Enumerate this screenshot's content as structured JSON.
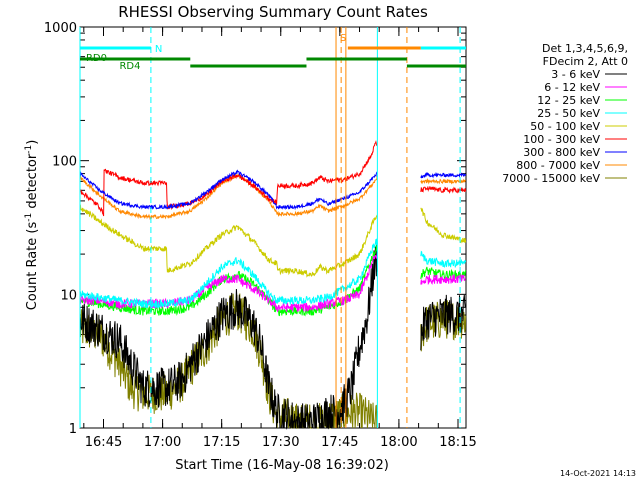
{
  "chart_data": {
    "type": "line",
    "title": "RHESSI Observing Summary Count Rates",
    "xlabel": "Start Time (16-May-08 16:39:02)",
    "ylabel": "Count Rate (s^-1 detector^-1)",
    "y_scale": "log",
    "ylim": [
      1,
      1000
    ],
    "x_minutes_range": [
      0,
      98
    ],
    "x_ticks": [
      "16:45",
      "17:00",
      "17:15",
      "17:30",
      "17:45",
      "18:00",
      "18:15"
    ],
    "y_ticks": [
      "1",
      "10",
      "100",
      "1000"
    ],
    "legend_header": [
      "Det 1,3,4,5,6,9,",
      "FDecim 2, Att 0"
    ],
    "legend_position": "right",
    "footer": "14-Oct-2021 14:13",
    "series": [
      {
        "name": "3 - 6 keV",
        "color": "#000000",
        "x": [
          0,
          5,
          10,
          13,
          16,
          22,
          26,
          28,
          32,
          36,
          40,
          44,
          46,
          48,
          50,
          53,
          55,
          57,
          59,
          61,
          63,
          65,
          67,
          69,
          71,
          73,
          74.5,
          75.5,
          86.5,
          88,
          92,
          98
        ],
        "y": [
          6.5,
          5.5,
          4.5,
          3,
          2,
          2,
          2.3,
          3,
          4.5,
          7,
          8,
          6,
          4,
          2,
          1.3,
          1.2,
          1.1,
          1.1,
          1.1,
          1.2,
          1.3,
          1.3,
          1.5,
          2,
          4,
          7,
          15,
          20,
          5,
          6.5,
          7,
          7
        ]
      },
      {
        "name": "6 - 12 keV",
        "color": "#ff00ff",
        "x": [
          0,
          5,
          10,
          16,
          22,
          28,
          32,
          36,
          40,
          44,
          48,
          50,
          55,
          59,
          63,
          67,
          71,
          74.5,
          75.5,
          86.5,
          88,
          92,
          98
        ],
        "y": [
          9,
          9,
          8.5,
          8.5,
          8.5,
          9,
          11,
          13,
          13,
          11,
          9,
          8,
          8,
          8,
          8.5,
          9,
          10,
          18,
          20,
          12,
          13,
          13,
          13
        ]
      },
      {
        "name": "12 - 25 keV",
        "color": "#00ff00",
        "x": [
          0,
          5,
          10,
          16,
          22,
          28,
          32,
          36,
          40,
          44,
          48,
          50,
          55,
          59,
          63,
          67,
          71,
          74.5,
          75.5,
          86.5,
          88,
          92,
          98
        ],
        "y": [
          9,
          8.5,
          8,
          7.5,
          7.5,
          8,
          10,
          13,
          14,
          12,
          9,
          7.5,
          7.5,
          7.5,
          8,
          9,
          11,
          20,
          22,
          14,
          15,
          14,
          14
        ]
      },
      {
        "name": "25 - 50 keV",
        "color": "#00ffff",
        "x": [
          0,
          5,
          10,
          16,
          22,
          28,
          32,
          36,
          40,
          44,
          48,
          50,
          55,
          59,
          63,
          67,
          71,
          74.5,
          75.5,
          86.5,
          88,
          92,
          98
        ],
        "y": [
          10,
          9.5,
          9,
          8.5,
          8.5,
          9,
          12,
          16,
          18,
          14,
          10,
          9,
          9,
          9,
          9.5,
          11,
          13,
          23,
          25,
          20,
          18,
          17,
          17
        ]
      },
      {
        "name": "50 - 100 keV",
        "color": "#cccc00",
        "x": [
          0,
          5,
          10,
          16,
          22,
          22.1,
          28,
          32,
          36,
          40,
          44,
          48,
          50,
          50.1,
          55,
          59,
          61,
          63,
          65,
          67,
          71,
          74.5,
          75.5,
          86.5,
          88,
          92,
          98
        ],
        "y": [
          45,
          35,
          28,
          22,
          22,
          15,
          17,
          22,
          28,
          32,
          25,
          18,
          17,
          15,
          15,
          14,
          16,
          15,
          16,
          17,
          20,
          35,
          40,
          45,
          35,
          28,
          25
        ]
      },
      {
        "name": "100 - 300 keV",
        "color": "#ff0000",
        "x": [
          0,
          5,
          6,
          6.1,
          10,
          16,
          22,
          22.1,
          28,
          32,
          36,
          40,
          44,
          48,
          50,
          50.1,
          55,
          59,
          61,
          63,
          65,
          67,
          71,
          74,
          75,
          86.5,
          88,
          92,
          98
        ],
        "y": [
          60,
          45,
          40,
          85,
          75,
          68,
          68,
          45,
          48,
          55,
          70,
          78,
          65,
          52,
          48,
          65,
          65,
          68,
          75,
          70,
          72,
          72,
          80,
          110,
          135,
          60,
          62,
          60,
          60
        ]
      },
      {
        "name": "300 - 800 keV",
        "color": "#0000ff",
        "x": [
          0,
          5,
          10,
          16,
          22,
          28,
          32,
          36,
          40,
          44,
          48,
          50,
          55,
          59,
          61,
          63,
          65,
          67,
          71,
          74.5,
          75.5,
          86.5,
          88,
          92,
          98
        ],
        "y": [
          80,
          60,
          48,
          45,
          45,
          48,
          58,
          72,
          82,
          70,
          55,
          45,
          45,
          48,
          52,
          47,
          50,
          52,
          58,
          75,
          80,
          75,
          78,
          78,
          78
        ]
      },
      {
        "name": "800 - 7000 keV",
        "color": "#ff8800",
        "x": [
          0,
          5,
          10,
          16,
          22,
          28,
          32,
          36,
          40,
          44,
          48,
          50,
          55,
          59,
          61,
          63,
          65,
          67,
          71,
          74.5,
          75.5,
          86.5,
          88,
          92,
          98
        ],
        "y": [
          75,
          55,
          42,
          38,
          38,
          42,
          52,
          68,
          78,
          65,
          50,
          40,
          40,
          42,
          46,
          42,
          44,
          46,
          52,
          68,
          75,
          70,
          70,
          70,
          70
        ]
      },
      {
        "name": "7000 - 15000 keV",
        "color": "#808000",
        "x": [
          0,
          5,
          10,
          13,
          16,
          22,
          26,
          28,
          32,
          36,
          40,
          44,
          46,
          48,
          50,
          53,
          55,
          57,
          59,
          61,
          63,
          65,
          67,
          69,
          71,
          73,
          74.5,
          75.5,
          86.5,
          88,
          92,
          98
        ],
        "y": [
          5.5,
          5,
          3,
          2,
          1.8,
          1.8,
          2.2,
          2.8,
          4,
          6.5,
          7.5,
          5.5,
          3.5,
          1.8,
          1.2,
          1.2,
          1.1,
          1.1,
          1.1,
          1.1,
          1.2,
          1.2,
          1.3,
          1.3,
          1.3,
          1.2,
          1.1,
          1.1,
          5,
          6,
          6.5,
          6.5
        ]
      }
    ],
    "annotations": {
      "labels": [
        {
          "text": "N",
          "color": "#00ffff",
          "x": 18
        },
        {
          "text": "S",
          "color": "#ff8800",
          "x": 65
        },
        {
          "text": "RD0",
          "color": "#008800",
          "x": 0.5
        },
        {
          "text": "RD4",
          "color": "#008800",
          "x": 9
        }
      ],
      "bars": [
        {
          "color": "#00ffff",
          "x_from": 0,
          "x_to": 18,
          "level": 0
        },
        {
          "color": "#00ffff",
          "x_from": 86.5,
          "x_to": 98,
          "level": 0
        },
        {
          "color": "#ff8800",
          "x_from": 68,
          "x_to": 86.5,
          "level": 0
        },
        {
          "color": "#008800",
          "x_from": 0,
          "x_to": 28,
          "level": 1
        },
        {
          "color": "#008800",
          "x_from": 28,
          "x_to": 57.5,
          "level": 2
        },
        {
          "color": "#008800",
          "x_from": 57.5,
          "x_to": 83,
          "level": 1
        },
        {
          "color": "#008800",
          "x_from": 83,
          "x_to": 98,
          "level": 2
        }
      ],
      "vlines": [
        {
          "x": 0,
          "color": "#00ffff",
          "dash": false
        },
        {
          "x": 18,
          "color": "#00ffff",
          "dash": true
        },
        {
          "x": 75.5,
          "color": "#00ffff",
          "dash": false
        },
        {
          "x": 96.5,
          "color": "#00ffff",
          "dash": true
        },
        {
          "x": 65,
          "color": "#ff8800",
          "dash": false
        },
        {
          "x": 67.5,
          "color": "#ff8800",
          "dash": false
        },
        {
          "x": 66.3,
          "color": "#ff8800",
          "dash": true
        },
        {
          "x": 83,
          "color": "#ff8800",
          "dash": true
        }
      ]
    }
  }
}
